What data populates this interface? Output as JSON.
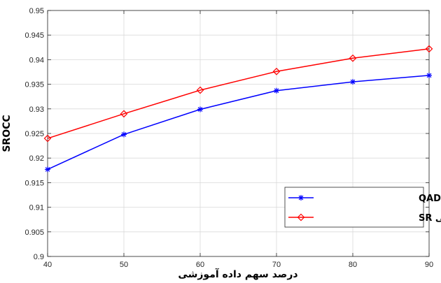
{
  "chart_data": {
    "type": "line",
    "x": [
      40,
      50,
      60,
      70,
      80,
      90
    ],
    "xlim": [
      40,
      90
    ],
    "ylim": [
      0.9,
      0.95
    ],
    "xticks": [
      "40",
      "50",
      "60",
      "70",
      "80",
      "90"
    ],
    "yticks": [
      "0.9",
      "0.905",
      "0.91",
      "0.915",
      "0.92",
      "0.925",
      "0.93",
      "0.935",
      "0.94",
      "0.945",
      "0.95"
    ],
    "xlabel": "درصد سهم داده آموزشی",
    "ylabel": "SROCC",
    "grid": true,
    "legend_position": "bottom-right",
    "series": [
      {
        "name": "پایگاه داده QADS",
        "color": "#0000ff",
        "marker": "asterisk",
        "values": [
          0.9177,
          0.9248,
          0.9299,
          0.9337,
          0.9355,
          0.9368
        ]
      },
      {
        "name": "پایگاه داده کیفی SR",
        "color": "#ff0000",
        "marker": "diamond",
        "values": [
          0.924,
          0.929,
          0.9338,
          0.9376,
          0.9403,
          0.9422
        ]
      }
    ]
  }
}
